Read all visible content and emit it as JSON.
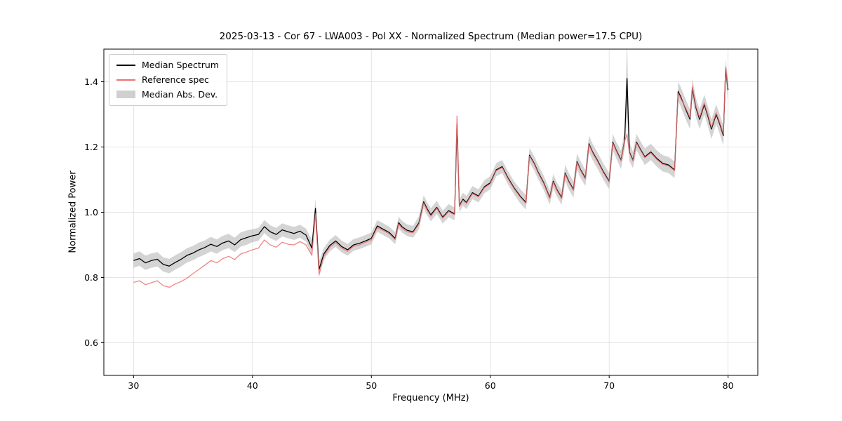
{
  "figure": {
    "title": "2025-03-13 - Cor 67 - LWA003 - Pol XX - Normalized Spectrum (Median power=17.5 CPU)",
    "xlabel": "Frequency (MHz)",
    "ylabel": "Normalized Power"
  },
  "legend": {
    "items": [
      {
        "label": "Median Spectrum",
        "type": "line",
        "color": "#000000"
      },
      {
        "label": "Reference spec",
        "type": "line",
        "color": "#f07070"
      },
      {
        "label": "Median Abs. Dev.",
        "type": "patch",
        "color": "#aaaaaa"
      }
    ]
  },
  "chart_data": {
    "type": "line",
    "title": "2025-03-13 - Cor 67 - LWA003 - Pol XX - Normalized Spectrum (Median power=17.5 CPU)",
    "xlabel": "Frequency (MHz)",
    "ylabel": "Normalized Power",
    "xlim": [
      27.5,
      82.5
    ],
    "ylim": [
      0.5,
      1.5
    ],
    "xticks": [
      30,
      40,
      50,
      60,
      70,
      80
    ],
    "yticks": [
      0.6,
      0.8,
      1.0,
      1.2,
      1.4
    ],
    "grid": true,
    "legend_position": "upper left",
    "x": [
      30.0,
      30.5,
      31.0,
      31.5,
      32.0,
      32.5,
      33.0,
      33.5,
      34.0,
      34.5,
      35.0,
      35.5,
      36.0,
      36.5,
      37.0,
      37.5,
      38.0,
      38.5,
      39.0,
      39.5,
      40.0,
      40.5,
      41.0,
      41.5,
      42.0,
      42.5,
      43.0,
      43.5,
      44.0,
      44.5,
      45.0,
      45.3,
      45.6,
      46.0,
      46.5,
      47.0,
      47.5,
      48.0,
      48.5,
      49.0,
      49.5,
      50.0,
      50.5,
      51.0,
      51.5,
      52.0,
      52.3,
      52.6,
      53.0,
      53.5,
      54.0,
      54.4,
      54.7,
      55.0,
      55.5,
      56.0,
      56.5,
      57.0,
      57.2,
      57.4,
      57.7,
      58.0,
      58.5,
      59.0,
      59.5,
      60.0,
      60.5,
      61.0,
      61.5,
      62.0,
      62.5,
      63.0,
      63.3,
      63.7,
      64.0,
      64.5,
      65.0,
      65.3,
      65.6,
      66.0,
      66.3,
      66.6,
      67.0,
      67.3,
      67.6,
      68.0,
      68.3,
      68.6,
      69.0,
      69.5,
      70.0,
      70.3,
      70.6,
      71.0,
      71.3,
      71.5,
      71.7,
      72.0,
      72.3,
      72.6,
      73.0,
      73.5,
      74.0,
      74.5,
      75.0,
      75.5,
      75.8,
      76.0,
      76.5,
      76.8,
      77.0,
      77.3,
      77.6,
      78.0,
      78.3,
      78.6,
      79.0,
      79.3,
      79.6,
      79.8,
      80.0
    ],
    "series": [
      {
        "name": "Median Spectrum",
        "color": "#000000",
        "values": [
          0.852,
          0.858,
          0.845,
          0.852,
          0.856,
          0.84,
          0.835,
          0.846,
          0.856,
          0.868,
          0.875,
          0.885,
          0.892,
          0.902,
          0.895,
          0.906,
          0.912,
          0.9,
          0.916,
          0.922,
          0.928,
          0.932,
          0.956,
          0.94,
          0.932,
          0.946,
          0.94,
          0.935,
          0.942,
          0.93,
          0.89,
          1.012,
          0.825,
          0.872,
          0.898,
          0.912,
          0.895,
          0.885,
          0.9,
          0.905,
          0.912,
          0.92,
          0.958,
          0.948,
          0.938,
          0.92,
          0.968,
          0.955,
          0.945,
          0.94,
          0.968,
          1.032,
          1.01,
          0.992,
          1.015,
          0.985,
          1.005,
          0.995,
          1.27,
          1.02,
          1.04,
          1.03,
          1.06,
          1.05,
          1.078,
          1.09,
          1.13,
          1.14,
          1.105,
          1.075,
          1.05,
          1.03,
          1.175,
          1.15,
          1.125,
          1.09,
          1.045,
          1.095,
          1.07,
          1.045,
          1.12,
          1.095,
          1.07,
          1.155,
          1.13,
          1.105,
          1.21,
          1.185,
          1.16,
          1.125,
          1.095,
          1.215,
          1.19,
          1.16,
          1.22,
          1.41,
          1.185,
          1.16,
          1.215,
          1.195,
          1.17,
          1.185,
          1.165,
          1.15,
          1.145,
          1.13,
          1.37,
          1.355,
          1.31,
          1.285,
          1.38,
          1.32,
          1.285,
          1.33,
          1.295,
          1.255,
          1.3,
          1.27,
          1.235,
          1.44,
          1.375
        ]
      },
      {
        "name": "Reference spec",
        "color": "#f07070",
        "values": [
          0.785,
          0.79,
          0.778,
          0.784,
          0.79,
          0.775,
          0.77,
          0.78,
          0.788,
          0.798,
          0.812,
          0.825,
          0.838,
          0.852,
          0.845,
          0.858,
          0.865,
          0.855,
          0.872,
          0.878,
          0.885,
          0.89,
          0.915,
          0.9,
          0.893,
          0.908,
          0.902,
          0.9,
          0.91,
          0.9,
          0.868,
          0.995,
          0.81,
          0.865,
          0.893,
          0.907,
          0.89,
          0.88,
          0.896,
          0.9,
          0.908,
          0.916,
          0.953,
          0.944,
          0.934,
          0.916,
          0.964,
          0.95,
          0.94,
          0.937,
          0.964,
          1.028,
          1.006,
          0.988,
          1.012,
          0.982,
          1.002,
          0.992,
          1.295,
          1.017,
          1.037,
          1.027,
          1.057,
          1.047,
          1.075,
          1.087,
          1.127,
          1.137,
          1.102,
          1.072,
          1.047,
          1.027,
          1.172,
          1.147,
          1.122,
          1.087,
          1.042,
          1.092,
          1.067,
          1.042,
          1.117,
          1.092,
          1.067,
          1.152,
          1.127,
          1.102,
          1.207,
          1.182,
          1.157,
          1.122,
          1.092,
          1.212,
          1.187,
          1.157,
          1.217,
          1.24,
          1.182,
          1.157,
          1.212,
          1.192,
          1.167,
          1.182,
          1.162,
          1.147,
          1.142,
          1.127,
          1.365,
          1.35,
          1.315,
          1.29,
          1.385,
          1.325,
          1.29,
          1.335,
          1.3,
          1.26,
          1.305,
          1.275,
          1.24,
          1.445,
          1.38
        ]
      }
    ],
    "band": {
      "name": "Median Abs. Dev.",
      "around": "Median Spectrum",
      "color": "#aaaaaa",
      "opacity": 0.5,
      "halfwidth": [
        0.022,
        0.022,
        0.022,
        0.022,
        0.022,
        0.022,
        0.022,
        0.022,
        0.022,
        0.022,
        0.022,
        0.022,
        0.022,
        0.022,
        0.022,
        0.022,
        0.022,
        0.022,
        0.022,
        0.022,
        0.02,
        0.02,
        0.02,
        0.02,
        0.02,
        0.02,
        0.02,
        0.02,
        0.02,
        0.02,
        0.025,
        0.03,
        0.025,
        0.018,
        0.018,
        0.018,
        0.018,
        0.018,
        0.018,
        0.018,
        0.018,
        0.018,
        0.018,
        0.018,
        0.018,
        0.018,
        0.018,
        0.018,
        0.018,
        0.018,
        0.02,
        0.02,
        0.02,
        0.02,
        0.02,
        0.02,
        0.02,
        0.02,
        0.035,
        0.02,
        0.02,
        0.02,
        0.02,
        0.02,
        0.02,
        0.02,
        0.02,
        0.02,
        0.02,
        0.02,
        0.022,
        0.022,
        0.022,
        0.022,
        0.022,
        0.022,
        0.022,
        0.022,
        0.022,
        0.022,
        0.025,
        0.025,
        0.025,
        0.025,
        0.025,
        0.025,
        0.025,
        0.025,
        0.025,
        0.025,
        0.025,
        0.025,
        0.025,
        0.028,
        0.028,
        0.12,
        0.028,
        0.025,
        0.025,
        0.025,
        0.025,
        0.025,
        0.025,
        0.025,
        0.025,
        0.025,
        0.03,
        0.03,
        0.03,
        0.03,
        0.03,
        0.03,
        0.03,
        0.03,
        0.03,
        0.03,
        0.03,
        0.03,
        0.03,
        0.03,
        0.03
      ]
    }
  }
}
